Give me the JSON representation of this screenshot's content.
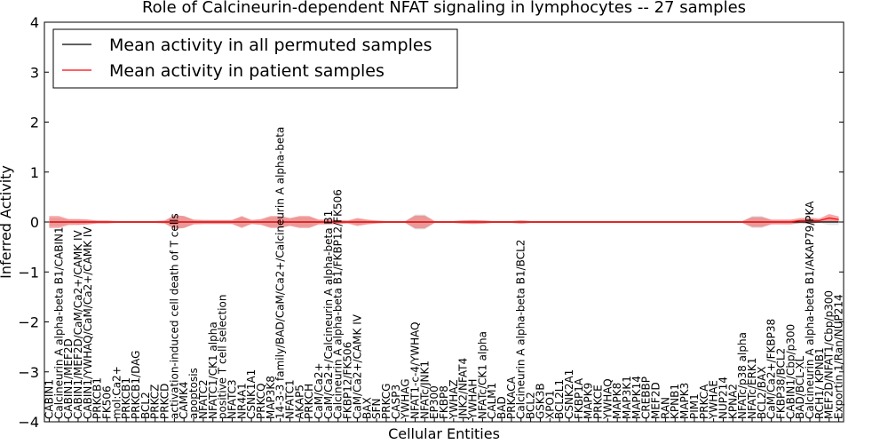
{
  "chart_data": {
    "type": "line",
    "title": "Role of Calcineurin-dependent NFAT signaling in lymphocytes -- 27 samples",
    "xlabel": "Cellular Entities",
    "ylabel": "Inferred Activity",
    "ylim": [
      -4,
      4
    ],
    "yticks": [
      "4",
      "3",
      "2",
      "1",
      "0",
      "−1",
      "−2",
      "−3",
      "−4"
    ],
    "ytick_values": [
      4,
      3,
      2,
      1,
      0,
      -1,
      -2,
      -3,
      -4
    ],
    "legend_position": "top-left",
    "legend": [
      {
        "label": "Mean activity in all permuted samples",
        "color": "#000000"
      },
      {
        "label": "Mean activity in patient samples",
        "color": "#ff0000"
      }
    ],
    "categories": [
      "CABIN1",
      "Calcineurin A alpha-beta B1/CABIN1",
      "CABIN1/MEF2D",
      "CABIN1/MEF2D/CaM/Ca2+/CAMK IV",
      "CABIN1/YWHAQ/CaM/Ca2+/CAMK IV",
      "PRKCB1",
      "FK506",
      "mol:Ca2+",
      "PRKCB1",
      "PRKCB1/DAG",
      "BCL2",
      "PRKCZ",
      "PRKCD",
      "activation-induced cell death of T cells",
      "CAMK4",
      "apoptosis",
      "NFATC2",
      "NFATC1/CK1 alpha",
      "positive T cell selection",
      "NFATC3",
      "NR4A1",
      "CSNK1A1",
      "PRKCQ",
      "MAP3K8",
      "14-3-3 family/BAD/CaM/Ca2+/Calcineurin A alpha-beta",
      "NFATC1",
      "AKAP5",
      "PRKCH",
      "CaM/Ca2+",
      "CaM/Ca2+/Calcineurin A alpha-beta B1",
      "Calcineurin A alpha-beta B1/FKBP12/FK506",
      "FKBP12/FK506",
      "CaM/Ca2+/CAMK IV",
      "BAX",
      "SFN",
      "PRKCG",
      "CASP3",
      "YWHAG",
      "NFAT1-c-4/YWHAQ",
      "NFATc/JNK1",
      "EP300",
      "FKBP8",
      "YWHAZ",
      "JNK2/NFAT4",
      "YWHAH",
      "NFATc/CK1 alpha",
      "CALM1",
      "BAD",
      "PRKACA",
      "Calcineurin A alpha-beta B1/BCL2",
      "BCL2",
      "GSK3B",
      "XPO1",
      "BCL2L1",
      "CSNK2A1",
      "FKBP1A",
      "MAPK9",
      "PRKCE",
      "YWHAQ",
      "MAPK8",
      "MAP3K1",
      "MAPK14",
      "CREBBP",
      "MEF2D",
      "RAN",
      "KPNB1",
      "MAPK3",
      "PIM1",
      "PRKCA",
      "YWHAE",
      "NUP214",
      "KPNA2",
      "NFATc/p38 alpha",
      "NFATc/ERK1",
      "BCL2/BAX",
      "CaM/Ca2+/FKBP38",
      "FKBP38/BCL2",
      "CABIN1/Cbp/p300",
      "BAD/BCL-XL",
      "Calcineurin A alpha-beta B1/AKAP79/PKA",
      "RCH1/ KPNB1",
      "MEF2D/NFAT1/Cbp/p300",
      "Exportin 1/Ran/NUP214"
    ],
    "series": [
      {
        "name": "Mean activity in all permuted samples",
        "color": "#000000",
        "values": [
          0,
          0,
          0,
          0,
          0,
          0,
          0,
          0,
          0,
          0,
          0,
          0,
          0,
          0,
          0,
          0,
          0,
          0,
          0,
          0,
          0,
          0,
          0,
          0,
          0,
          0,
          0,
          0,
          0,
          0,
          0,
          0,
          0,
          0,
          0,
          0,
          0,
          0,
          0,
          0,
          0,
          0,
          0,
          0,
          0,
          0,
          0,
          0,
          0,
          0,
          0,
          0,
          0,
          0,
          0,
          0,
          0,
          0,
          0,
          0,
          0,
          0,
          0,
          0,
          0,
          0,
          0,
          0,
          0,
          0,
          0,
          0,
          0,
          0,
          0,
          0,
          0,
          0,
          0,
          0,
          0,
          0,
          0
        ],
        "band": [
          0.08,
          0.08,
          0.05,
          0.05,
          0.05,
          0.02,
          0.02,
          0.02,
          0.02,
          0.02,
          0.02,
          0.02,
          0.02,
          0.12,
          0.12,
          0.04,
          0.04,
          0.04,
          0.04,
          0.04,
          0.1,
          0.04,
          0.04,
          0.1,
          0.1,
          0.06,
          0.1,
          0.1,
          0.04,
          0.04,
          0.04,
          0.02,
          0.06,
          0.04,
          0.02,
          0.02,
          0.02,
          0.02,
          0.15,
          0.15,
          0.02,
          0.02,
          0.02,
          0.04,
          0.04,
          0.04,
          0.02,
          0.02,
          0.02,
          0.04,
          0.02,
          0.02,
          0.02,
          0.02,
          0.02,
          0.02,
          0.02,
          0.02,
          0.02,
          0.02,
          0.02,
          0.02,
          0.02,
          0.02,
          0.02,
          0.02,
          0.02,
          0.02,
          0.02,
          0.02,
          0.02,
          0.02,
          0.02,
          0.12,
          0.12,
          0.04,
          0.04,
          0.04,
          0.04,
          0.04,
          0.02,
          0.06,
          0.06
        ]
      },
      {
        "name": "Mean activity in patient samples",
        "color": "#ff0000",
        "values": [
          0,
          0,
          0,
          0,
          0,
          0,
          0,
          0,
          0,
          0,
          0,
          0,
          0,
          0,
          0,
          0,
          0,
          0,
          0,
          0,
          0,
          0,
          0,
          0,
          0,
          0,
          0,
          0,
          0,
          0,
          0,
          0,
          0,
          0,
          0,
          0,
          0,
          0,
          0,
          0,
          0,
          0,
          0,
          0,
          0,
          0,
          0,
          0,
          0,
          0,
          0,
          0,
          0,
          0,
          0,
          0,
          0,
          0,
          0,
          0,
          0,
          0,
          0,
          0,
          0,
          0,
          0,
          0,
          0,
          0,
          0,
          0,
          0,
          0,
          0,
          0,
          0,
          0,
          0.03,
          0.03,
          0.03,
          0.08,
          0.05
        ],
        "band": [
          0.12,
          0.12,
          0.06,
          0.06,
          0.05,
          0.03,
          0.03,
          0.02,
          0.02,
          0.02,
          0.02,
          0.02,
          0.03,
          0.14,
          0.12,
          0.05,
          0.04,
          0.04,
          0.04,
          0.04,
          0.12,
          0.04,
          0.06,
          0.12,
          0.12,
          0.08,
          0.12,
          0.12,
          0.05,
          0.05,
          0.04,
          0.03,
          0.08,
          0.05,
          0.03,
          0.02,
          0.02,
          0.02,
          0.13,
          0.13,
          0.02,
          0.02,
          0.02,
          0.03,
          0.04,
          0.03,
          0.02,
          0.02,
          0.02,
          0.03,
          0.02,
          0.02,
          0.02,
          0.02,
          0.02,
          0.02,
          0.02,
          0.02,
          0.02,
          0.02,
          0.02,
          0.02,
          0.02,
          0.02,
          0.02,
          0.02,
          0.02,
          0.02,
          0.02,
          0.02,
          0.02,
          0.02,
          0.02,
          0.1,
          0.1,
          0.05,
          0.05,
          0.05,
          0.05,
          0.06,
          0.04,
          0.08,
          0.06
        ]
      }
    ],
    "baseline": {
      "value": 0,
      "style": "dotted"
    }
  }
}
